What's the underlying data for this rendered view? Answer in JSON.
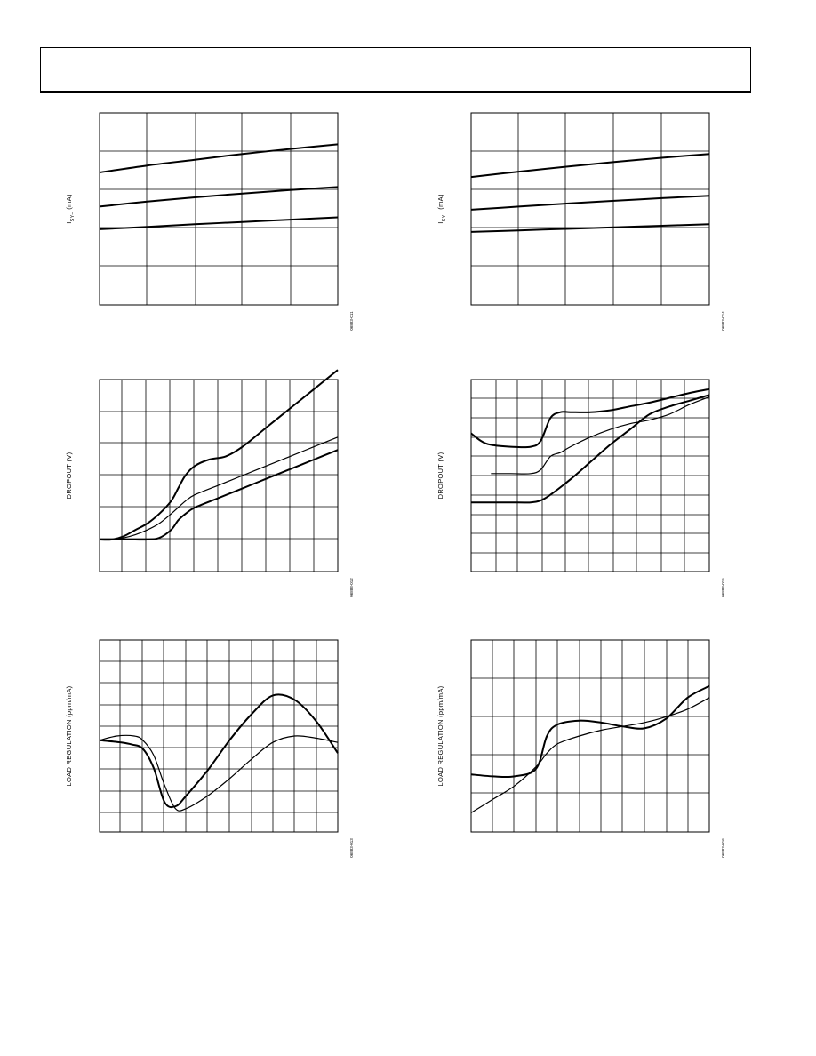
{
  "page": {
    "header_text": ""
  },
  "charts": [
    {
      "id": "chart-1",
      "ylabel": "I",
      "ylabel_sub": "SY–",
      "ylabel_suffix": " (mA)",
      "figure_id": "06883-011"
    },
    {
      "id": "chart-2",
      "ylabel": "I",
      "ylabel_sub": "SY–",
      "ylabel_suffix": " (mA)",
      "figure_id": "06883-014"
    },
    {
      "id": "chart-3",
      "ylabel": "DROPOUT (V)",
      "figure_id": "06883-012"
    },
    {
      "id": "chart-4",
      "ylabel": "DROPOUT (V)",
      "figure_id": "06883-015"
    },
    {
      "id": "chart-5",
      "ylabel": "LOAD REGULATION (ppm/mA)",
      "figure_id": "06883-013"
    },
    {
      "id": "chart-6",
      "ylabel": "LOAD REGULATION (ppm/mA)",
      "figure_id": "06883-016"
    }
  ],
  "chart_data": [
    {
      "type": "line",
      "xlim": [
        0,
        5
      ],
      "ylim": [
        0,
        5
      ],
      "grid": true,
      "series": [
        {
          "x": [
            0,
            1,
            2,
            3,
            4,
            5
          ],
          "y": [
            3.45,
            3.63,
            3.78,
            3.93,
            4.06,
            4.18
          ]
        },
        {
          "x": [
            0,
            1,
            2,
            3,
            4,
            5
          ],
          "y": [
            2.56,
            2.69,
            2.8,
            2.9,
            2.99,
            3.07
          ]
        },
        {
          "x": [
            0,
            1,
            2,
            3,
            4,
            5
          ],
          "y": [
            1.97,
            2.03,
            2.1,
            2.16,
            2.22,
            2.28
          ]
        }
      ]
    },
    {
      "type": "line",
      "xlim": [
        0,
        5
      ],
      "ylim": [
        0,
        5
      ],
      "grid": true,
      "series": [
        {
          "x": [
            0,
            1,
            2,
            3,
            4,
            5
          ],
          "y": [
            3.33,
            3.47,
            3.6,
            3.72,
            3.83,
            3.93
          ]
        },
        {
          "x": [
            0,
            1,
            2,
            3,
            4,
            5
          ],
          "y": [
            2.48,
            2.56,
            2.64,
            2.71,
            2.78,
            2.84
          ]
        },
        {
          "x": [
            0,
            1,
            2,
            3,
            4,
            5
          ],
          "y": [
            1.9,
            1.94,
            1.98,
            2.02,
            2.06,
            2.1
          ]
        }
      ]
    },
    {
      "type": "line",
      "xlim": [
        0,
        10
      ],
      "ylim": [
        0,
        6
      ],
      "grid": true,
      "series": [
        {
          "width": 2,
          "x": [
            0,
            0.5,
            1,
            1.5,
            2,
            2.5,
            3,
            3.3,
            3.6,
            4,
            4.6,
            5.3,
            6,
            7,
            8,
            9,
            10
          ],
          "y": [
            1,
            1,
            1.1,
            1.3,
            1.5,
            1.8,
            2.2,
            2.6,
            3,
            3.3,
            3.5,
            3.6,
            3.9,
            4.5,
            5.1,
            5.7,
            6.3
          ]
        },
        {
          "width": 1.2,
          "x": [
            0,
            0.5,
            1,
            1.5,
            2,
            2.5,
            3,
            3.3,
            3.6,
            4,
            5,
            6,
            7,
            8,
            9,
            10
          ],
          "y": [
            1,
            1,
            1.05,
            1.15,
            1.3,
            1.5,
            1.8,
            2,
            2.2,
            2.4,
            2.7,
            3,
            3.3,
            3.6,
            3.9,
            4.2
          ]
        },
        {
          "width": 2,
          "x": [
            0,
            0.5,
            1,
            1.5,
            2,
            2.5,
            3,
            3.3,
            3.6,
            4,
            5,
            6,
            7,
            8,
            9,
            10
          ],
          "y": [
            1,
            1,
            1,
            1,
            1,
            1.05,
            1.3,
            1.6,
            1.8,
            2,
            2.3,
            2.6,
            2.9,
            3.2,
            3.5,
            3.8
          ]
        }
      ]
    },
    {
      "type": "line",
      "xlim": [
        0,
        12
      ],
      "ylim": [
        0,
        10
      ],
      "grid": true,
      "series": [
        {
          "width": 2,
          "x": [
            0,
            0.5,
            1,
            2,
            3,
            3.5,
            4,
            4.5,
            5,
            6,
            7,
            8,
            9,
            10,
            11,
            12
          ],
          "y": [
            7.2,
            6.8,
            6.6,
            6.5,
            6.5,
            6.8,
            8,
            8.3,
            8.3,
            8.3,
            8.4,
            8.6,
            8.8,
            9.05,
            9.3,
            9.5
          ]
        },
        {
          "width": 1.2,
          "x": [
            1,
            2,
            3,
            3.5,
            4,
            4.5,
            5,
            6,
            7,
            8,
            9,
            10,
            11,
            12
          ],
          "y": [
            5.1,
            5.1,
            5.1,
            5.3,
            6,
            6.2,
            6.5,
            7,
            7.4,
            7.7,
            7.9,
            8.2,
            8.7,
            9.1
          ]
        },
        {
          "width": 2,
          "x": [
            0,
            1,
            2,
            3,
            3.5,
            4,
            5,
            6,
            7,
            8,
            9,
            10,
            11,
            12
          ],
          "y": [
            3.6,
            3.6,
            3.6,
            3.6,
            3.7,
            4,
            4.8,
            5.7,
            6.6,
            7.4,
            8.2,
            8.6,
            8.9,
            9.2
          ]
        }
      ]
    },
    {
      "type": "line",
      "xlim": [
        0,
        11
      ],
      "ylim": [
        0,
        9
      ],
      "grid": true,
      "series": [
        {
          "width": 2,
          "x": [
            0,
            1,
            1.5,
            2,
            2.5,
            3,
            3.5,
            4,
            5,
            6,
            7,
            8,
            9,
            10,
            11
          ],
          "y": [
            4.3,
            4.2,
            4.1,
            3.9,
            3,
            1.4,
            1.2,
            1.7,
            2.9,
            4.3,
            5.5,
            6.4,
            6.2,
            5.2,
            3.7
          ]
        },
        {
          "width": 1.2,
          "x": [
            0,
            0.8,
            1.6,
            2,
            2.5,
            3,
            3.5,
            4,
            5,
            6,
            7,
            8,
            9,
            10,
            11
          ],
          "y": [
            4.3,
            4.5,
            4.5,
            4.3,
            3.6,
            2.2,
            1.1,
            1.1,
            1.7,
            2.5,
            3.4,
            4.2,
            4.5,
            4.4,
            4.2
          ]
        }
      ]
    },
    {
      "type": "line",
      "xlim": [
        0,
        11
      ],
      "ylim": [
        0,
        5
      ],
      "grid": true,
      "series": [
        {
          "width": 2,
          "x": [
            0,
            1,
            2,
            3,
            3.5,
            4,
            5,
            6,
            7,
            8,
            9,
            10,
            11
          ],
          "y": [
            1.5,
            1.45,
            1.45,
            1.65,
            2.5,
            2.8,
            2.9,
            2.85,
            2.75,
            2.7,
            2.95,
            3.5,
            3.8
          ]
        },
        {
          "width": 1.2,
          "x": [
            0,
            1,
            2,
            3,
            3.5,
            4,
            5,
            6,
            7,
            8,
            9,
            10,
            11
          ],
          "y": [
            0.5,
            0.85,
            1.2,
            1.7,
            2.05,
            2.3,
            2.5,
            2.65,
            2.75,
            2.85,
            3,
            3.2,
            3.5
          ]
        }
      ]
    }
  ]
}
